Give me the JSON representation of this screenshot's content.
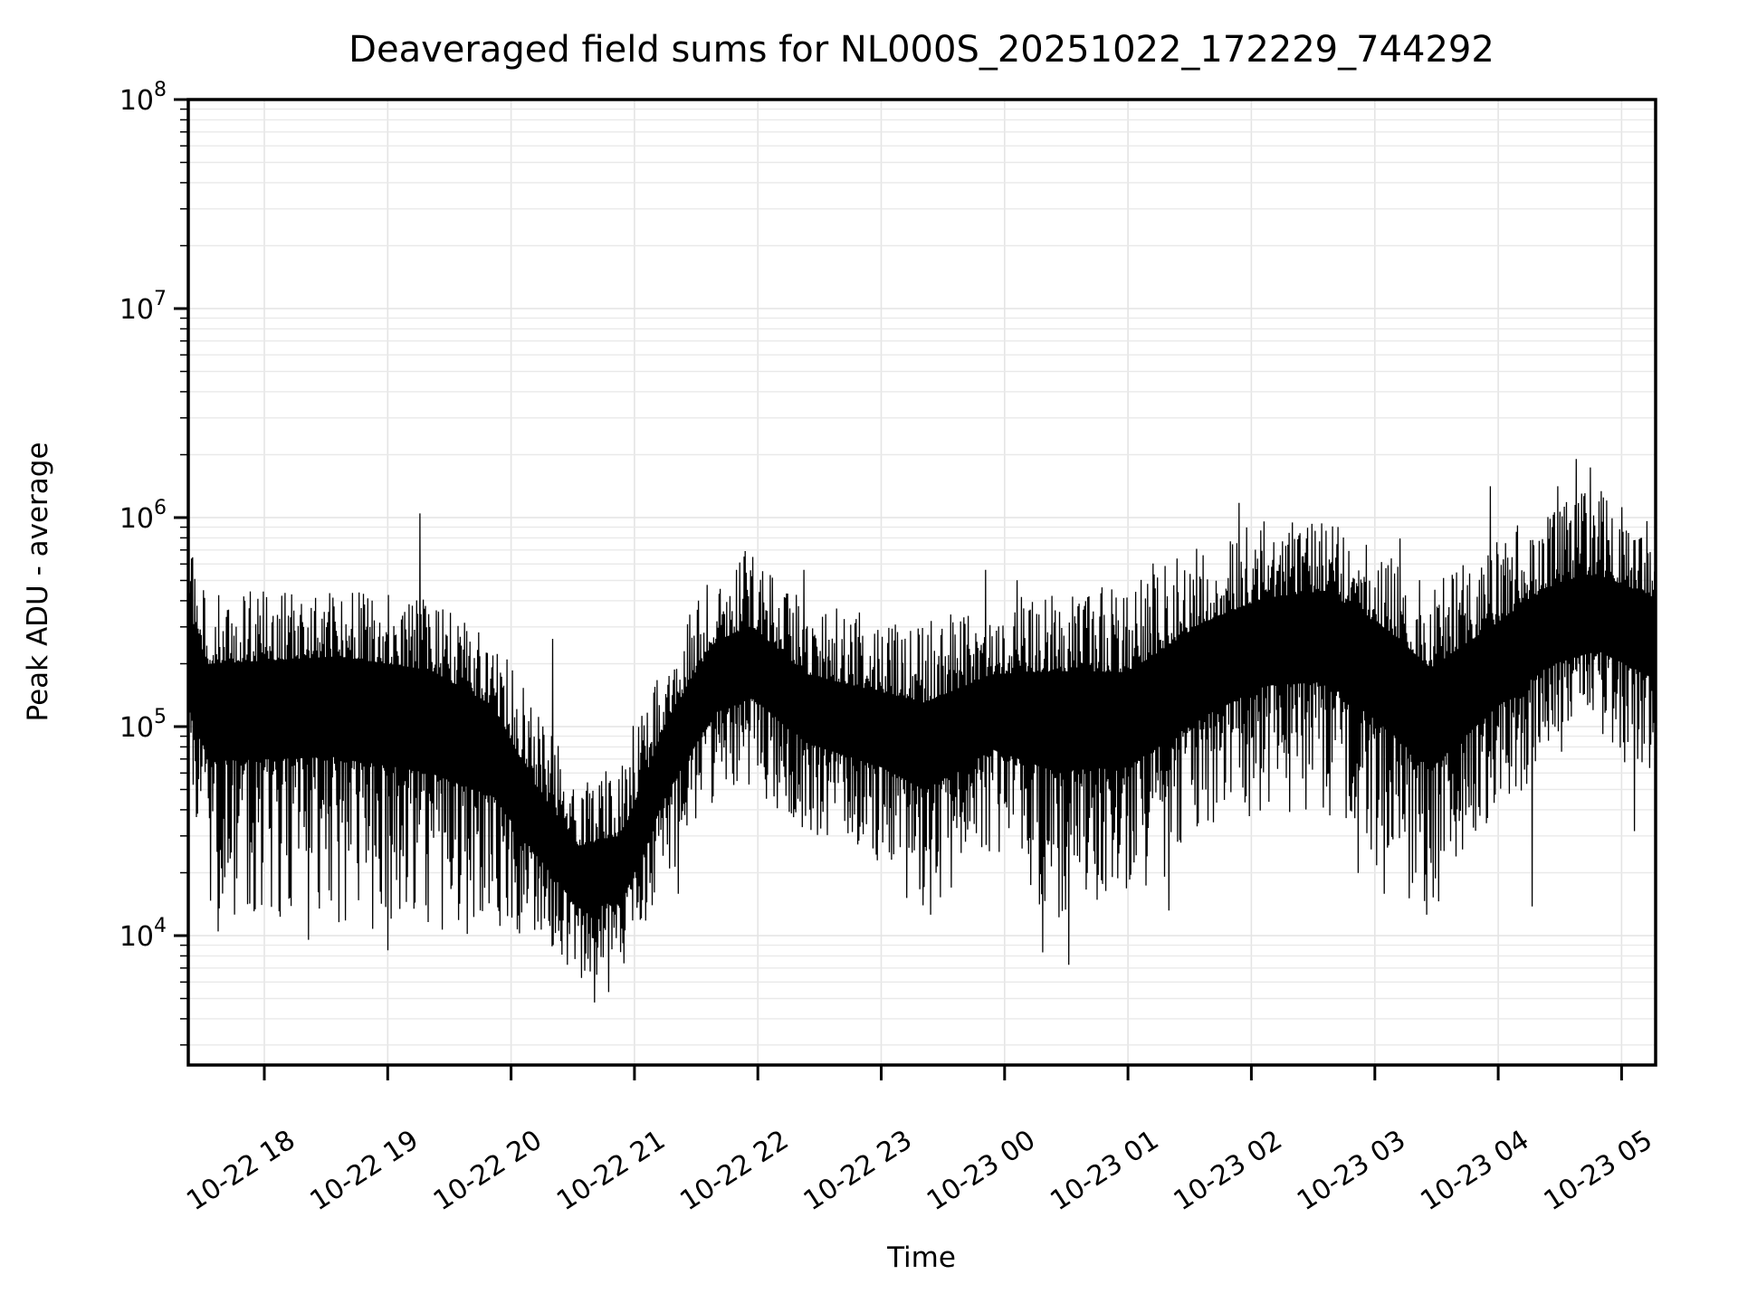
{
  "chart_data": {
    "type": "line",
    "title": "Deaveraged field sums for NL000S_20251022_172229_744292",
    "xlabel": "Time",
    "ylabel": "Peak ADU - average",
    "yscale": "log",
    "ylim_log10": [
      3.381,
      8
    ],
    "x_domain_hours": [
      17.384,
      29.276
    ],
    "grid": true,
    "legend": "none",
    "line_color": "#000000",
    "grid_color": "#e4e4e4",
    "background_color": "#ffffff",
    "y_ticks": [
      {
        "log10": 4,
        "label_base": "10",
        "label_exp": "4"
      },
      {
        "log10": 5,
        "label_base": "10",
        "label_exp": "5"
      },
      {
        "log10": 6,
        "label_base": "10",
        "label_exp": "6"
      },
      {
        "log10": 7,
        "label_base": "10",
        "label_exp": "7"
      },
      {
        "log10": 8,
        "label_base": "10",
        "label_exp": "8"
      }
    ],
    "x_ticks": [
      {
        "hour": 18,
        "label": "10-22 18"
      },
      {
        "hour": 19,
        "label": "10-22 19"
      },
      {
        "hour": 20,
        "label": "10-22 20"
      },
      {
        "hour": 21,
        "label": "10-22 21"
      },
      {
        "hour": 22,
        "label": "10-22 22"
      },
      {
        "hour": 23,
        "label": "10-22 23"
      },
      {
        "hour": 24,
        "label": "10-23 00"
      },
      {
        "hour": 25,
        "label": "10-23 01"
      },
      {
        "hour": 26,
        "label": "10-23 02"
      },
      {
        "hour": 27,
        "label": "10-23 03"
      },
      {
        "hour": 28,
        "label": "10-23 04"
      },
      {
        "hour": 29,
        "label": "10-23 05"
      }
    ],
    "series_name": "Peak ADU - average",
    "envelope_keyframes_comment": "each entry: [time_hours_from_17-22_00:00, center_log10, upper_amp_log10, lower_amp_log10] — read from pixels of the noisy trace",
    "envelope_keyframes": [
      [
        17.384,
        5.35,
        0.55,
        0.9
      ],
      [
        17.55,
        5.15,
        0.5,
        1.05
      ],
      [
        18.6,
        5.2,
        0.45,
        1.15
      ],
      [
        19.35,
        5.12,
        0.5,
        1.15
      ],
      [
        19.85,
        4.95,
        0.5,
        0.95
      ],
      [
        20.2,
        4.55,
        0.55,
        0.55
      ],
      [
        20.55,
        4.28,
        0.5,
        0.5
      ],
      [
        20.9,
        4.3,
        0.6,
        0.45
      ],
      [
        21.25,
        4.85,
        0.55,
        0.6
      ],
      [
        21.65,
        5.25,
        0.5,
        0.6
      ],
      [
        21.95,
        5.33,
        0.5,
        0.65
      ],
      [
        22.4,
        5.1,
        0.5,
        0.6
      ],
      [
        23.0,
        5.0,
        0.55,
        0.65
      ],
      [
        23.35,
        4.95,
        0.55,
        0.85
      ],
      [
        23.9,
        5.1,
        0.5,
        0.7
      ],
      [
        24.4,
        5.1,
        0.55,
        1.05
      ],
      [
        25.0,
        5.08,
        0.6,
        0.9
      ],
      [
        25.6,
        5.33,
        0.55,
        0.95
      ],
      [
        26.1,
        5.45,
        0.55,
        0.85
      ],
      [
        26.6,
        5.5,
        0.5,
        0.95
      ],
      [
        27.1,
        5.3,
        0.55,
        1.05
      ],
      [
        27.45,
        5.1,
        0.6,
        1.0
      ],
      [
        27.95,
        5.3,
        0.6,
        0.75
      ],
      [
        28.4,
        5.5,
        0.55,
        0.7
      ],
      [
        28.8,
        5.55,
        0.6,
        0.62
      ],
      [
        29.276,
        5.45,
        0.55,
        0.75
      ]
    ],
    "notable_spikes_up_comment": "[time_hours, log10_value] — visible tall upward excursions",
    "notable_spikes_up": [
      [
        17.42,
        5.81
      ],
      [
        19.26,
        6.02
      ],
      [
        20.34,
        5.42
      ],
      [
        21.9,
        5.84
      ],
      [
        22.37,
        5.75
      ],
      [
        23.85,
        5.75
      ],
      [
        24.1,
        5.7
      ],
      [
        25.2,
        5.78
      ],
      [
        25.9,
        6.07
      ],
      [
        26.3,
        5.87
      ],
      [
        26.45,
        5.9
      ],
      [
        27.2,
        5.9
      ],
      [
        27.94,
        6.15
      ],
      [
        28.48,
        6.15
      ],
      [
        28.63,
        6.28
      ],
      [
        28.75,
        6.24
      ],
      [
        29.0,
        6.05
      ]
    ],
    "notable_spikes_down_comment": "[time_hours, log10_value] — visible deep downward excursions",
    "notable_spikes_down": [
      [
        17.62,
        4.02
      ],
      [
        18.35,
        3.98
      ],
      [
        19.0,
        3.93
      ],
      [
        20.45,
        3.86
      ],
      [
        20.67,
        3.68
      ],
      [
        20.79,
        3.73
      ],
      [
        21.35,
        4.2
      ],
      [
        23.2,
        4.18
      ],
      [
        23.4,
        4.1
      ],
      [
        24.3,
        3.92
      ],
      [
        24.52,
        3.86
      ],
      [
        25.33,
        4.12
      ],
      [
        26.86,
        4.3
      ],
      [
        27.07,
        4.2
      ],
      [
        27.42,
        4.1
      ],
      [
        28.27,
        4.14
      ],
      [
        29.1,
        4.5
      ]
    ],
    "noise": {
      "seed": 1022,
      "samples": 1350,
      "base_frac": 0.3,
      "shape_pow": 2.6,
      "p_up_tall": 0.1,
      "p_dn_tall": 0.14,
      "clamp_log10": [
        3.43,
        7.9
      ]
    }
  }
}
